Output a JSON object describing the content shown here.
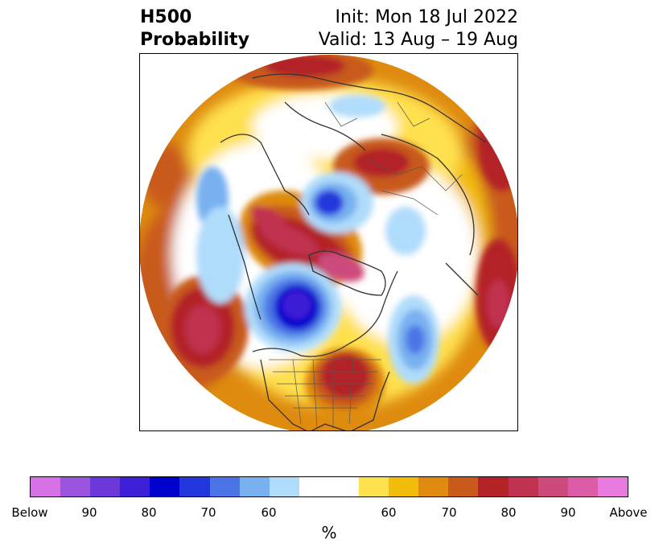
{
  "title": {
    "left_line1": "H500",
    "left_line2": "Probability",
    "right_line1": "Init: Mon 18 Jul 2022",
    "right_line2": "Valid: 13 Aug – 19 Aug"
  },
  "map": {
    "projection": "polar-stereographic-north",
    "features": [
      "coastlines",
      "country-borders",
      "us-state-borders"
    ],
    "anomaly_centers": [
      {
        "region": "Eastern United States",
        "category": "Above",
        "level": "80"
      },
      {
        "region": "Central Canada / Hudson Bay west",
        "category": "Below",
        "level": "90"
      },
      {
        "region": "Greenland / Baffin",
        "category": "Above",
        "level": "90"
      },
      {
        "region": "North Atlantic",
        "category": "Below",
        "level": "80"
      },
      {
        "region": "Western Russia / Scandinavia",
        "category": "Above",
        "level": "80"
      },
      {
        "region": "Arctic Ocean near Siberia",
        "category": "Below",
        "level": "80"
      },
      {
        "region": "North Pacific",
        "category": "Above",
        "level": "90"
      }
    ]
  },
  "colorbar": {
    "unit_label": "%",
    "below_colors": [
      "#d672e6",
      "#9a54de",
      "#6d38da",
      "#3c1fd6",
      "#0000cc",
      "#2137db",
      "#4b74e6",
      "#78b0f0",
      "#b0dcfb"
    ],
    "neutral_color": "#ffffff",
    "above_colors": [
      "#ffe04d",
      "#f2bd0a",
      "#de8b10",
      "#c85a1c",
      "#b32225",
      "#c03350",
      "#cc4b7c",
      "#dc5ca8",
      "#e879dd"
    ],
    "tick_labels": [
      "Below",
      "90",
      "80",
      "70",
      "60",
      "60",
      "70",
      "80",
      "90",
      "Above"
    ]
  }
}
